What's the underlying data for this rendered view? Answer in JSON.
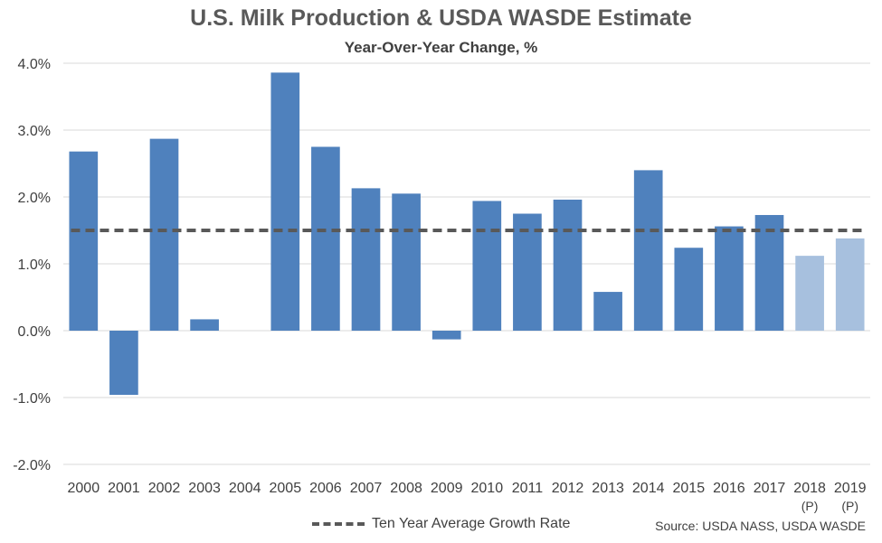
{
  "title": "U.S. Milk Production & USDA WASDE Estimate",
  "subtitle": "Year-Over-Year Change, %",
  "source": "Source: USDA NASS, USDA WASDE",
  "legend": {
    "average_label": "Ten Year Average Growth Rate"
  },
  "colors": {
    "actual": "#4F81BD",
    "projected": "#A7C0DE",
    "average_line": "#595959",
    "grid": "#D9D9D9"
  },
  "chart_data": {
    "type": "bar",
    "title": "U.S. Milk Production & USDA WASDE Estimate",
    "subtitle": "Year-Over-Year Change, %",
    "categories": [
      "2000",
      "2001",
      "2002",
      "2003",
      "2004",
      "2005",
      "2006",
      "2007",
      "2008",
      "2009",
      "2010",
      "2011",
      "2012",
      "2013",
      "2014",
      "2015",
      "2016",
      "2017",
      "2018",
      "2019"
    ],
    "category_sublabels": [
      "",
      "",
      "",
      "",
      "",
      "",
      "",
      "",
      "",
      "",
      "",
      "",
      "",
      "",
      "",
      "",
      "",
      "",
      "(P)",
      "(P)"
    ],
    "values": [
      2.68,
      -0.96,
      2.87,
      0.17,
      0.0,
      3.86,
      2.75,
      2.13,
      2.05,
      -0.13,
      1.94,
      1.75,
      1.96,
      0.58,
      2.4,
      1.24,
      1.56,
      1.73,
      1.12,
      1.38
    ],
    "projected": [
      false,
      false,
      false,
      false,
      false,
      false,
      false,
      false,
      false,
      false,
      false,
      false,
      false,
      false,
      false,
      false,
      false,
      false,
      true,
      true
    ],
    "average_line": {
      "name": "Ten Year Average Growth Rate",
      "value": 1.5
    },
    "ylim": [
      -2.0,
      4.0
    ],
    "yticks": [
      -2.0,
      -1.0,
      0.0,
      1.0,
      2.0,
      3.0,
      4.0
    ],
    "ytick_labels": [
      "-2.0%",
      "-1.0%",
      "0.0%",
      "1.0%",
      "2.0%",
      "3.0%",
      "4.0%"
    ],
    "grid": true,
    "legend_position": "bottom"
  }
}
